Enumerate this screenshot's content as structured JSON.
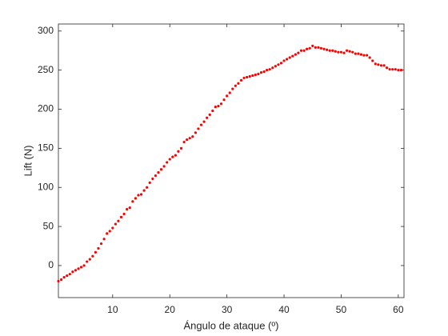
{
  "chart_data": {
    "type": "scatter",
    "xlabel": "Ángulo de ataque (º)",
    "ylabel": "Lift (N)",
    "color": "#ff0000",
    "xlim": [
      0.5,
      61
    ],
    "ylim": [
      -41,
      309
    ],
    "xticks": [
      10,
      20,
      30,
      40,
      50,
      60
    ],
    "yticks": [
      0,
      50,
      100,
      150,
      200,
      250,
      300
    ],
    "x": [
      0.5,
      1,
      1.5,
      2,
      2.5,
      3,
      3.5,
      4,
      4.5,
      5,
      5.5,
      6,
      6.5,
      7,
      7.5,
      8,
      8.5,
      9,
      9.5,
      10,
      10.5,
      11,
      11.5,
      12,
      12.5,
      13,
      13.5,
      14,
      14.5,
      15,
      15.5,
      16,
      16.5,
      17,
      17.5,
      18,
      18.5,
      19,
      19.5,
      20,
      20.5,
      21,
      21.5,
      22,
      22.5,
      23,
      23.5,
      24,
      24.5,
      25,
      25.5,
      26,
      26.5,
      27,
      27.5,
      28,
      28.5,
      29,
      29.5,
      30,
      30.5,
      31,
      31.5,
      32,
      32.5,
      33,
      33.5,
      34,
      34.5,
      35,
      35.5,
      36,
      36.5,
      37,
      37.5,
      38,
      38.5,
      39,
      39.5,
      40,
      40.5,
      41,
      41.5,
      42,
      42.5,
      43,
      43.5,
      44,
      44.5,
      45,
      45.5,
      46,
      46.5,
      47,
      47.5,
      48,
      48.5,
      49,
      49.5,
      50,
      50.5,
      51,
      51.5,
      52,
      52.5,
      53,
      53.5,
      54,
      54.5,
      55,
      55.5,
      56,
      56.5,
      57,
      57.5,
      58,
      58.5,
      59,
      59.5,
      60,
      60.5
    ],
    "values": [
      -20,
      -18,
      -15,
      -13,
      -11,
      -8,
      -6,
      -4,
      -2,
      0,
      5,
      8,
      12,
      17,
      22,
      28,
      34,
      41,
      44,
      48,
      53,
      57,
      62,
      66,
      72,
      74,
      82,
      86,
      90,
      91,
      96,
      100,
      106,
      111,
      115,
      119,
      123,
      127,
      132,
      136,
      139,
      141,
      146,
      150,
      158,
      161,
      163,
      165,
      170,
      175,
      180,
      184,
      189,
      193,
      198,
      203,
      204,
      207,
      212,
      217,
      221,
      226,
      230,
      233,
      237,
      240,
      241,
      242,
      243,
      244,
      245,
      247,
      248,
      250,
      251,
      253,
      255,
      257,
      259,
      262,
      264,
      266,
      268,
      270,
      272,
      275,
      275,
      277,
      278,
      281,
      279,
      279,
      278,
      277,
      276,
      275,
      275,
      274,
      273,
      273,
      272,
      275,
      274,
      273,
      271,
      271,
      270,
      269,
      269,
      266,
      262,
      258,
      257,
      256,
      256,
      253,
      251,
      251,
      251,
      250,
      250
    ]
  }
}
